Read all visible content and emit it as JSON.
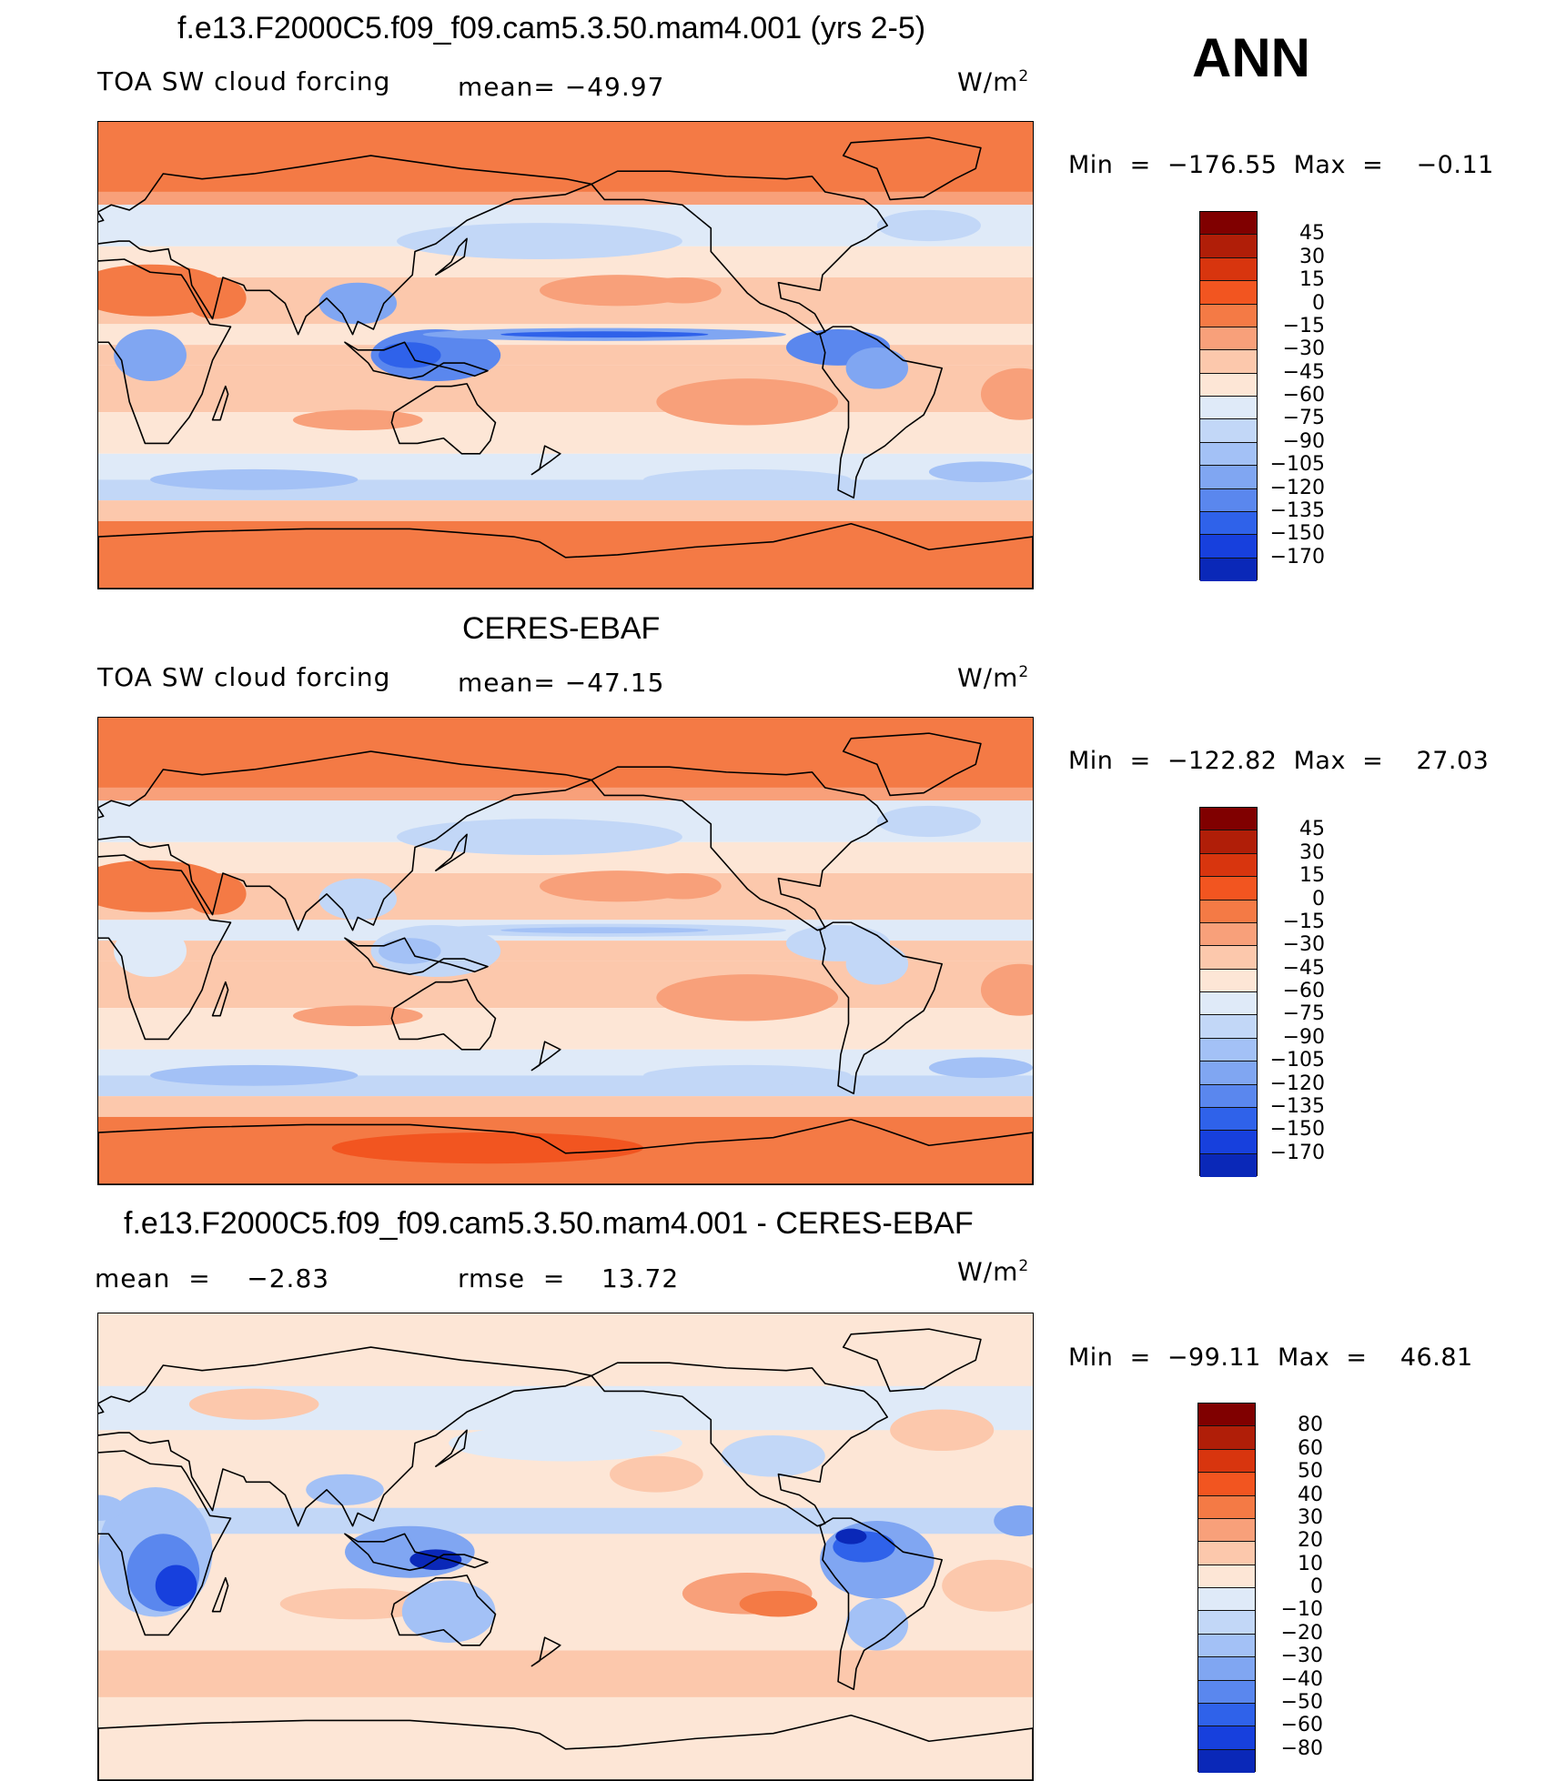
{
  "season": "ANN",
  "colors": {
    "warm": [
      "#800000",
      "#b01e08",
      "#d8350e",
      "#f25520",
      "#f47a45",
      "#f8a07a",
      "#fcc8ac",
      "#fde6d6"
    ],
    "cool": [
      "#dfeaf8",
      "#c2d7f7",
      "#a3c1f6",
      "#80a6f2",
      "#5a87ee",
      "#2f62ea",
      "#1740dd",
      "#0a28b8",
      "#001a8a"
    ],
    "land_outline": "#000000"
  },
  "panels": [
    {
      "title": "f.e13.F2000C5.f09_f09.cam5.3.50.mam4.001 (yrs 2-5)",
      "left_label": "TOA SW cloud forcing",
      "mean_text": "mean= −49.97",
      "units": "W/m",
      "units_sup": "2",
      "minmax": "Min  =  −176.55  Max  =    −0.11",
      "levels": [
        "45",
        "30",
        "15",
        "0",
        "−15",
        "−30",
        "−45",
        "−60",
        "−75",
        "−90",
        "−105",
        "−120",
        "−135",
        "−150",
        "−170"
      ],
      "variant": "model"
    },
    {
      "title": "CERES-EBAF",
      "left_label": "TOA SW cloud forcing",
      "mean_text": "mean= −47.15",
      "units": "W/m",
      "units_sup": "2",
      "minmax": "Min  =  −122.82  Max  =    27.03",
      "levels": [
        "45",
        "30",
        "15",
        "0",
        "−15",
        "−30",
        "−45",
        "−60",
        "−75",
        "−90",
        "−105",
        "−120",
        "−135",
        "−150",
        "−170"
      ],
      "variant": "obs"
    },
    {
      "title": "f.e13.F2000C5.f09_f09.cam5.3.50.mam4.001 - CERES-EBAF",
      "left_label": "mean  =    −2.83",
      "mean_text": "rmse  =    13.72",
      "units": "W/m",
      "units_sup": "2",
      "minmax": "Min  =  −99.11  Max  =    46.81",
      "levels": [
        "80",
        "60",
        "50",
        "40",
        "30",
        "20",
        "10",
        "0",
        "−10",
        "−20",
        "−30",
        "−40",
        "−50",
        "−60",
        "−80"
      ],
      "variant": "diff"
    }
  ]
}
